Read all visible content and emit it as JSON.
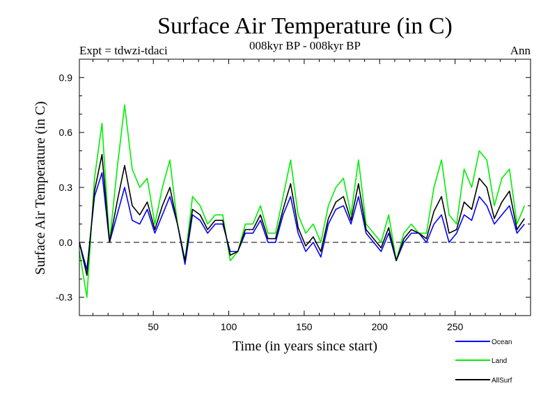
{
  "chart_data": {
    "type": "line",
    "title": "Surface Air Temperature (in C)",
    "subtitle_left": "Expt = tdwzi-tdaci",
    "subtitle_center": "008kyr BP - 008kyr BP",
    "subtitle_right": "Ann",
    "xlabel": "Time (in years since start)",
    "ylabel": "Surface Air Temperature (in C)",
    "xlim": [
      1,
      300
    ],
    "ylim": [
      -0.4,
      1.0
    ],
    "x_ticks": [
      50,
      100,
      150,
      200,
      250
    ],
    "x_tick_labels": [
      "50",
      "100",
      "150",
      "200",
      "250"
    ],
    "y_ticks": [
      -0.3,
      0.0,
      0.3,
      0.6,
      0.9
    ],
    "y_tick_labels": [
      "-0.3",
      "0.0",
      "0.3",
      "0.6",
      "0.9"
    ],
    "zero_line": 0.0,
    "legend_position": "bottom-right",
    "x_sample_step": 5,
    "series": [
      {
        "name": "Ocean",
        "color": "#0000ff",
        "values": [
          0.0,
          -0.15,
          0.25,
          0.38,
          0.0,
          0.15,
          0.3,
          0.12,
          0.1,
          0.18,
          0.05,
          0.15,
          0.25,
          0.1,
          -0.12,
          0.15,
          0.12,
          0.05,
          0.1,
          0.1,
          -0.05,
          -0.05,
          0.05,
          0.05,
          0.12,
          0.0,
          0.0,
          0.15,
          0.25,
          0.05,
          -0.05,
          0.0,
          -0.08,
          0.1,
          0.18,
          0.2,
          0.1,
          0.25,
          0.05,
          0.0,
          -0.05,
          0.05,
          -0.1,
          0.0,
          0.05,
          0.05,
          0.0,
          0.1,
          0.15,
          0.0,
          0.05,
          0.15,
          0.12,
          0.25,
          0.2,
          0.1,
          0.15,
          0.2,
          0.05,
          0.1
        ]
      },
      {
        "name": "Land",
        "color": "#00ee00",
        "values": [
          -0.05,
          -0.3,
          0.35,
          0.65,
          0.0,
          0.4,
          0.75,
          0.4,
          0.3,
          0.35,
          0.1,
          0.3,
          0.45,
          0.1,
          -0.1,
          0.25,
          0.2,
          0.1,
          0.15,
          0.15,
          -0.1,
          -0.05,
          0.1,
          0.1,
          0.2,
          0.05,
          0.05,
          0.25,
          0.45,
          0.15,
          0.05,
          0.1,
          0.0,
          0.2,
          0.3,
          0.35,
          0.15,
          0.45,
          0.1,
          0.05,
          0.0,
          0.15,
          -0.1,
          0.05,
          0.1,
          0.05,
          0.05,
          0.3,
          0.45,
          0.15,
          0.1,
          0.4,
          0.3,
          0.5,
          0.45,
          0.2,
          0.35,
          0.4,
          0.1,
          0.2
        ]
      },
      {
        "name": "AllSurf",
        "color": "#000000",
        "values": [
          0.0,
          -0.18,
          0.28,
          0.48,
          0.0,
          0.22,
          0.42,
          0.2,
          0.15,
          0.22,
          0.07,
          0.2,
          0.3,
          0.1,
          -0.1,
          0.18,
          0.15,
          0.07,
          0.12,
          0.12,
          -0.07,
          -0.05,
          0.07,
          0.07,
          0.15,
          0.02,
          0.02,
          0.18,
          0.32,
          0.08,
          -0.02,
          0.03,
          -0.05,
          0.13,
          0.22,
          0.25,
          0.12,
          0.32,
          0.07,
          0.02,
          -0.03,
          0.08,
          -0.1,
          0.02,
          0.07,
          0.05,
          0.02,
          0.17,
          0.25,
          0.05,
          0.07,
          0.22,
          0.18,
          0.35,
          0.3,
          0.13,
          0.22,
          0.28,
          0.07,
          0.13
        ]
      }
    ]
  }
}
